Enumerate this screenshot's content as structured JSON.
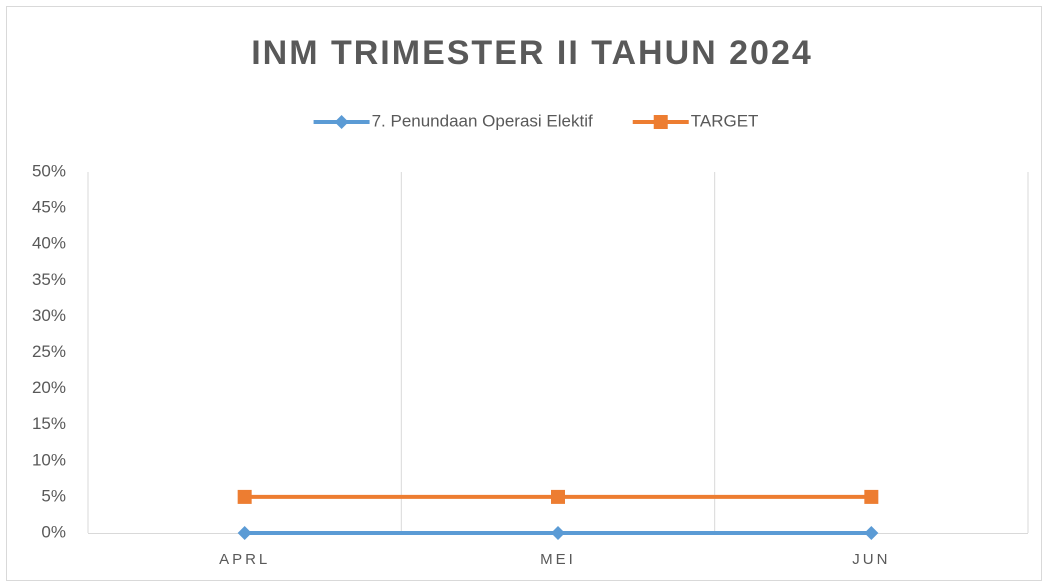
{
  "chart_data": {
    "type": "line",
    "title": "INM TRIMESTER II TAHUN 2024",
    "categories": [
      "APRL",
      "MEI",
      "JUN"
    ],
    "series": [
      {
        "name": "7. Penundaan Operasi Elektif",
        "color": "#5b9bd5",
        "marker": "diamond",
        "values": [
          0,
          0,
          0
        ]
      },
      {
        "name": "TARGET",
        "color": "#ed7d31",
        "marker": "square",
        "values": [
          5,
          5,
          5
        ]
      }
    ],
    "ylim": [
      0,
      50
    ],
    "yticks": [
      {
        "value": 0,
        "label": "0%"
      },
      {
        "value": 5,
        "label": "5%"
      },
      {
        "value": 10,
        "label": "10%"
      },
      {
        "value": 15,
        "label": "15%"
      },
      {
        "value": 20,
        "label": "20%"
      },
      {
        "value": 25,
        "label": "25%"
      },
      {
        "value": 30,
        "label": "30%"
      },
      {
        "value": 35,
        "label": "35%"
      },
      {
        "value": 40,
        "label": "40%"
      },
      {
        "value": 45,
        "label": "45%"
      },
      {
        "value": 50,
        "label": "50%"
      }
    ],
    "legend": "top"
  }
}
